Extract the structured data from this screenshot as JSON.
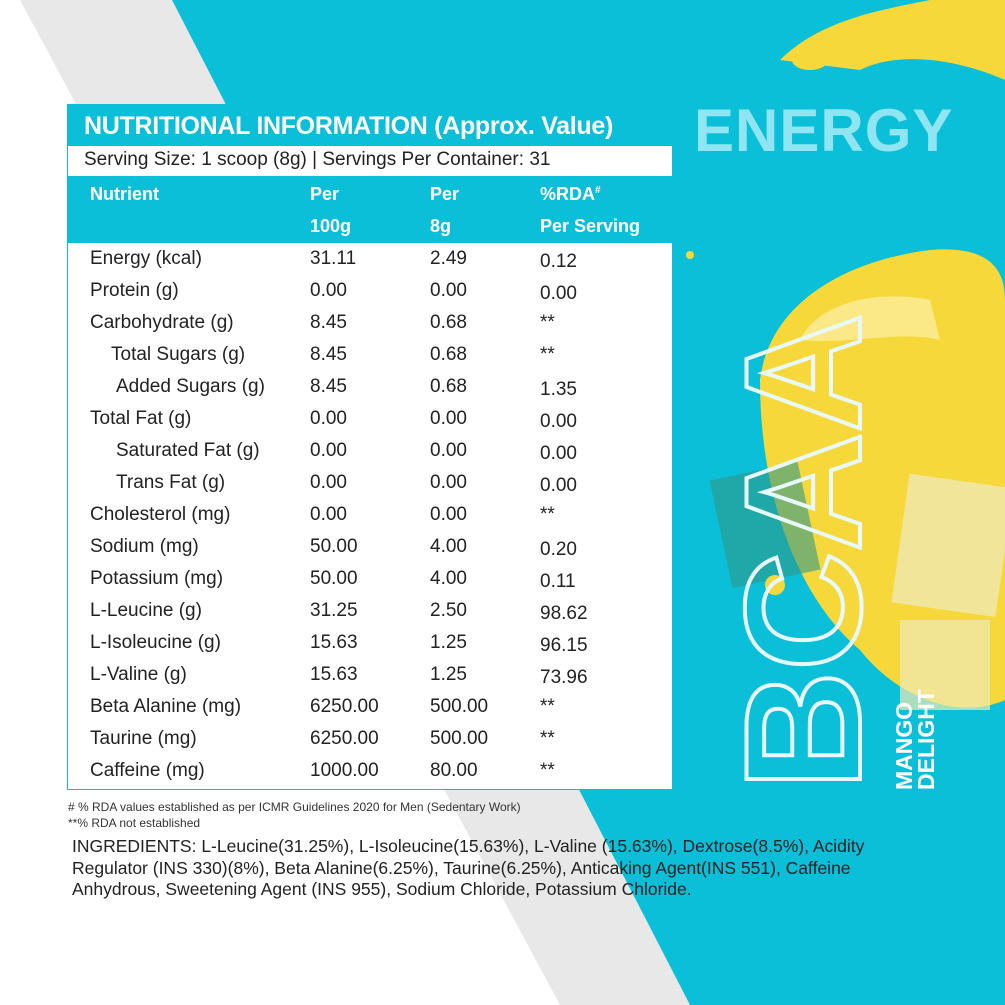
{
  "colors": {
    "brand": "#0bbfd8",
    "band": "#e8e8e8",
    "mango": "#f7d83a"
  },
  "brand": {
    "energy": "ENERGY",
    "product": "BCAA",
    "flavor_line1": "MANGO",
    "flavor_line2": "DELIGHT"
  },
  "table": {
    "title": "NUTRITIONAL INFORMATION (Approx. Value)",
    "serving": "Serving Size: 1 scoop (8g) | Servings Per Container: 31",
    "headers": {
      "nutrient": "Nutrient",
      "per100_a": "Per",
      "per100_b": "100g",
      "per8_a": "Per",
      "per8_b": "8g",
      "rda_a": "%RDA",
      "rda_sup": "#",
      "rda_b": "Per Serving"
    },
    "rows": [
      {
        "name": "Energy (kcal)",
        "per100": "31.11",
        "per8": "2.49",
        "rda": "0.12",
        "indent": 0
      },
      {
        "name": "Protein (g)",
        "per100": "0.00",
        "per8": "0.00",
        "rda": "0.00",
        "indent": 0
      },
      {
        "name": "Carbohydrate (g)",
        "per100": "8.45",
        "per8": "0.68",
        "rda": "**",
        "indent": 0
      },
      {
        "name": "Total Sugars (g)",
        "per100": "8.45",
        "per8": "0.68",
        "rda": "**",
        "indent": 1
      },
      {
        "name": "Added Sugars (g)",
        "per100": "8.45",
        "per8": "0.68",
        "rda": "1.35",
        "indent": 2
      },
      {
        "name": "Total Fat (g)",
        "per100": "0.00",
        "per8": "0.00",
        "rda": "0.00",
        "indent": 0
      },
      {
        "name": "Saturated Fat (g)",
        "per100": "0.00",
        "per8": "0.00",
        "rda": "0.00",
        "indent": 2
      },
      {
        "name": "Trans Fat (g)",
        "per100": "0.00",
        "per8": "0.00",
        "rda": "0.00",
        "indent": 2
      },
      {
        "name": "Cholesterol (mg)",
        "per100": "0.00",
        "per8": "0.00",
        "rda": "**",
        "indent": 0
      },
      {
        "name": "Sodium (mg)",
        "per100": "50.00",
        "per8": "4.00",
        "rda": "0.20",
        "indent": 0
      },
      {
        "name": "Potassium (mg)",
        "per100": "50.00",
        "per8": "4.00",
        "rda": "0.11",
        "indent": 0
      },
      {
        "name": "L-Leucine (g)",
        "per100": "31.25",
        "per8": "2.50",
        "rda": "98.62",
        "indent": 0
      },
      {
        "name": "L-Isoleucine (g)",
        "per100": "15.63",
        "per8": "1.25",
        "rda": "96.15",
        "indent": 0
      },
      {
        "name": "L-Valine (g)",
        "per100": "15.63",
        "per8": "1.25",
        "rda": "73.96",
        "indent": 0
      },
      {
        "name": "Beta Alanine (mg)",
        "per100": "6250.00",
        "per8": "500.00",
        "rda": "**",
        "indent": 0
      },
      {
        "name": "Taurine (mg)",
        "per100": "6250.00",
        "per8": "500.00",
        "rda": "**",
        "indent": 0
      },
      {
        "name": "Caffeine (mg)",
        "per100": "1000.00",
        "per8": "80.00",
        "rda": "**",
        "indent": 0
      }
    ]
  },
  "footnotes": {
    "note1": "# % RDA values established as per ICMR Guidelines 2020 for Men (Sedentary Work)",
    "note2": "**% RDA not established"
  },
  "ingredients": "INGREDIENTS: L-Leucine(31.25%), L-Isoleucine(15.63%), L-Valine (15.63%), Dextrose(8.5%), Acidity Regulator (INS 330)(8%), Beta Alanine(6.25%), Taurine(6.25%), Anticaking Agent(INS 551), Caffeine Anhydrous, Sweetening Agent (INS 955), Sodium Chloride, Potassium Chloride."
}
